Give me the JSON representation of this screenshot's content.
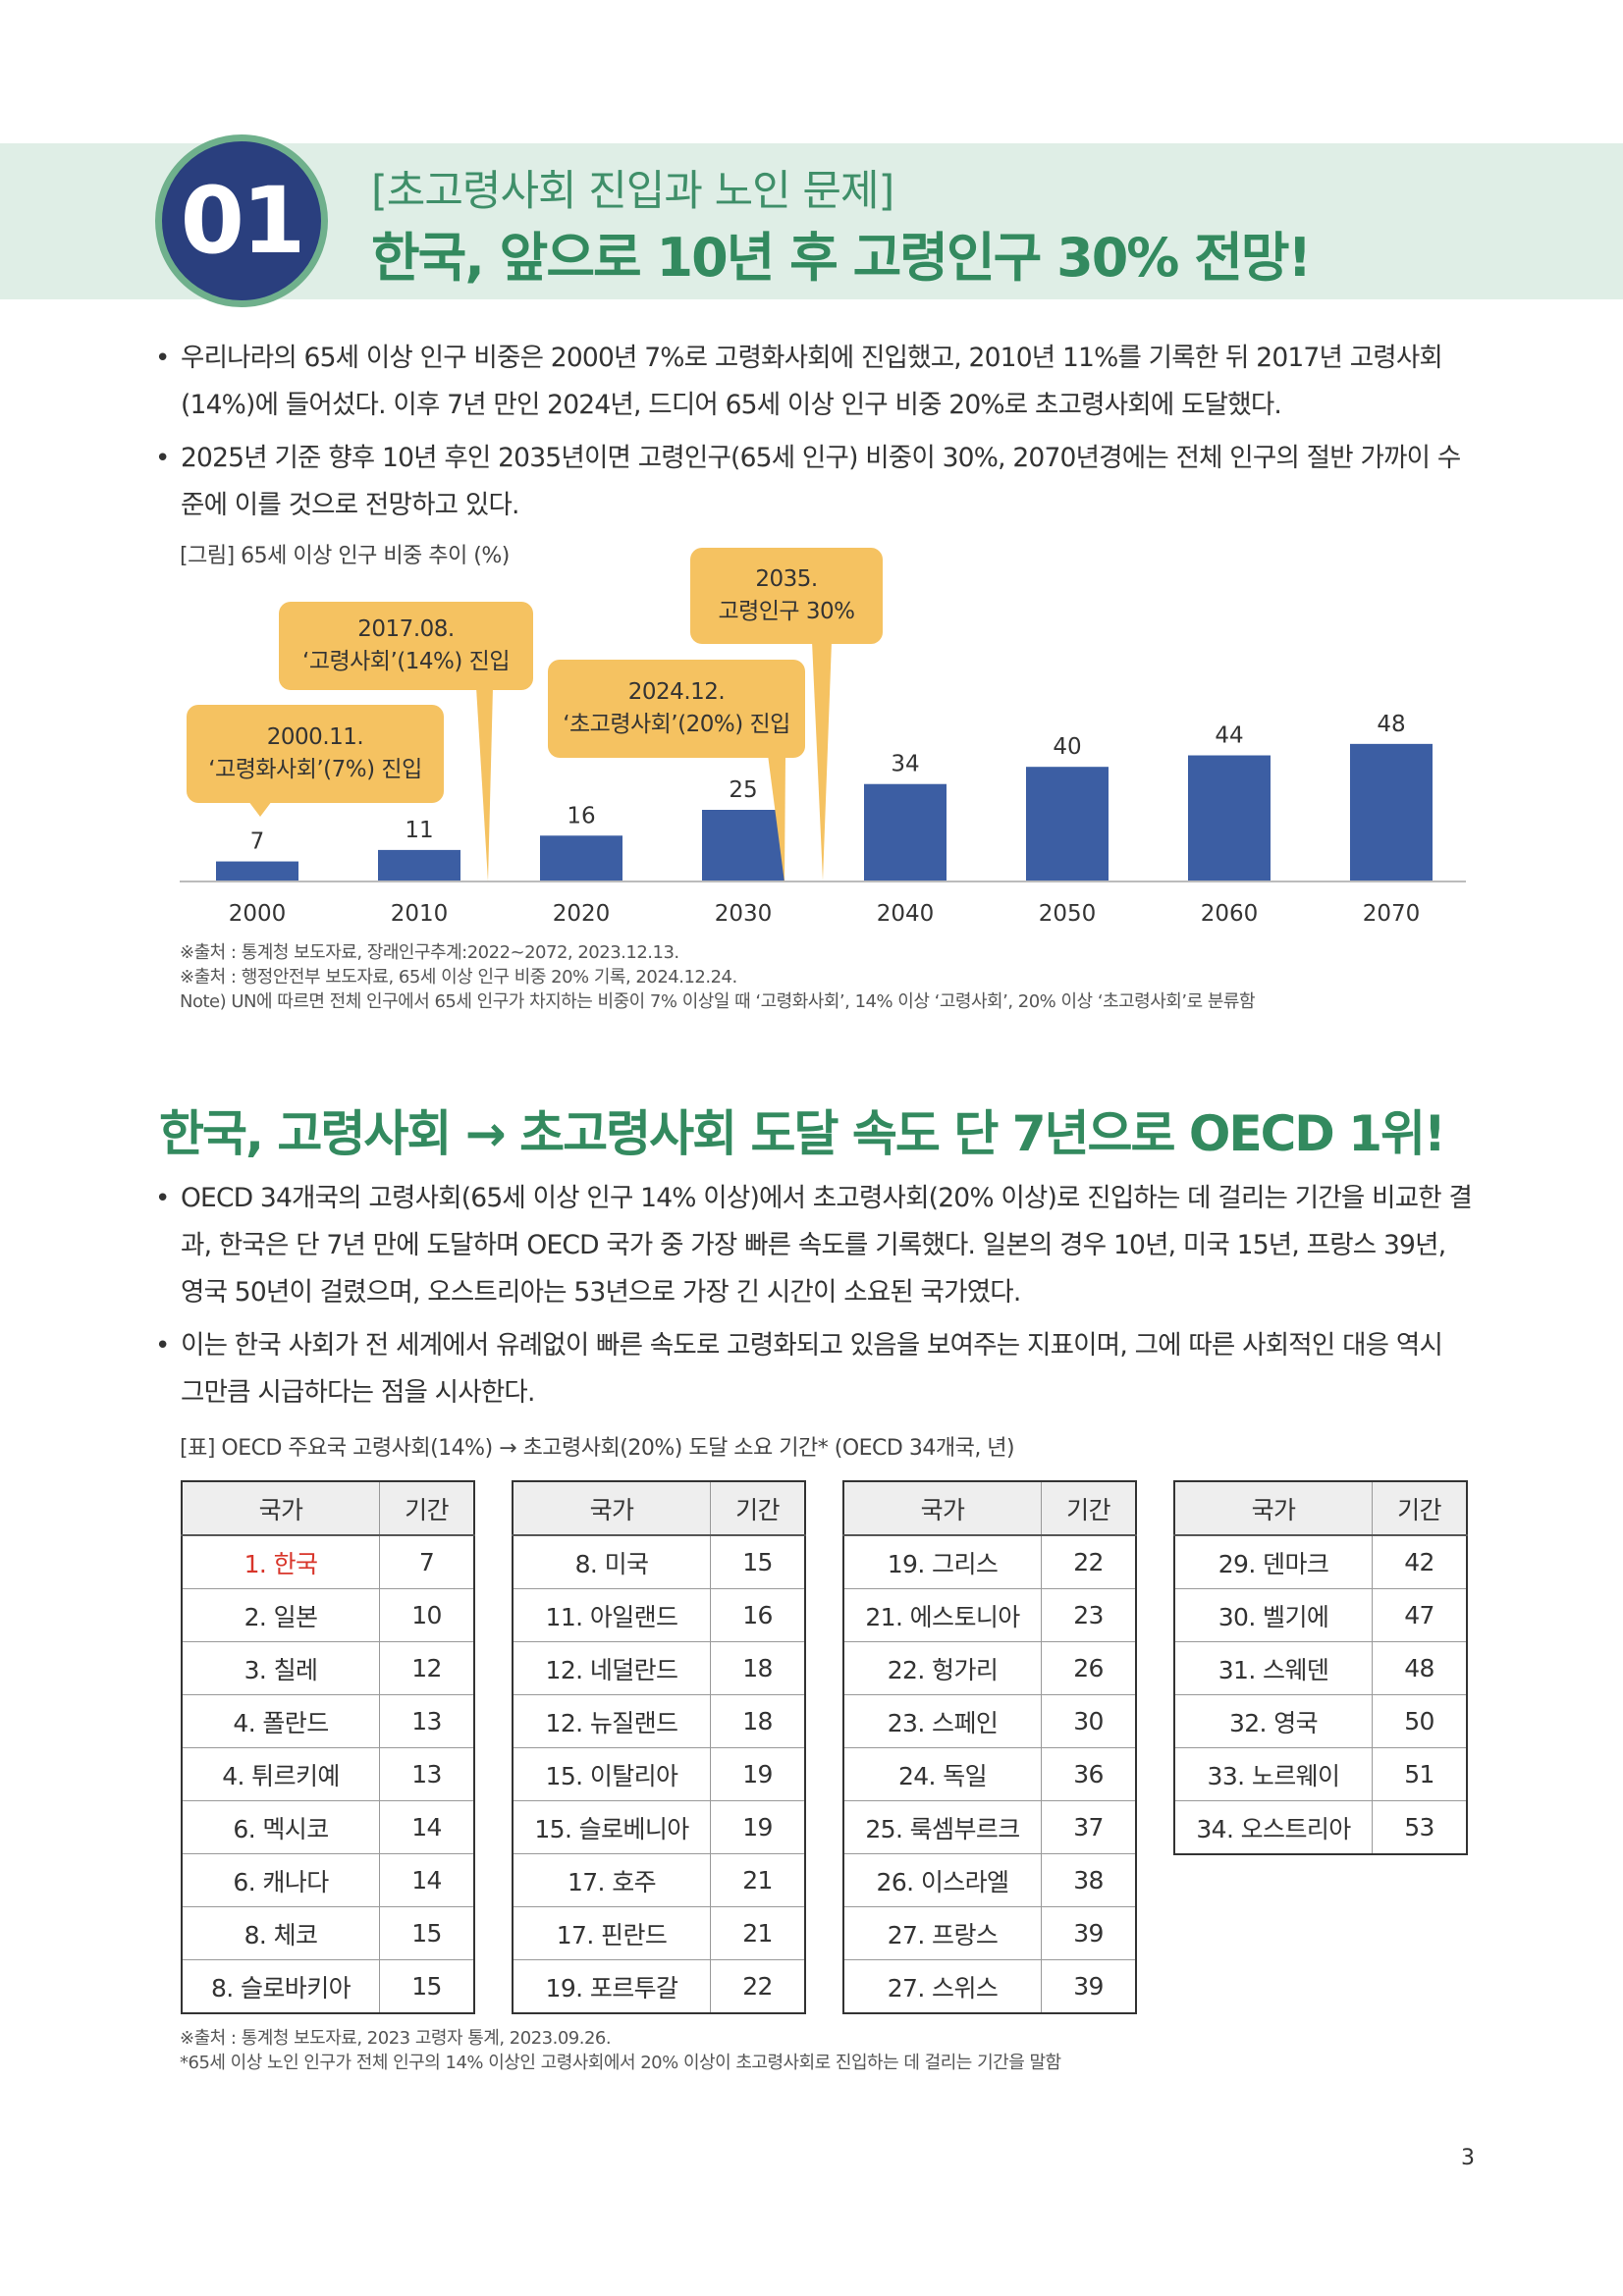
{
  "header": {
    "number": "01",
    "subtitle": "[초고령사회 진입과 노인 문제]",
    "title": "한국, 앞으로 10년 후 고령인구 30% 전망!"
  },
  "section1": {
    "bullets": [
      "우리나라의 65세 이상 인구 비중은 2000년 7%로 고령화사회에 진입했고, 2010년 11%를 기록한 뒤 2017년 고령사회(14%)에 들어섰다. 이후 7년 만인 2024년, 드디어 65세 이상 인구 비중 20%로 초고령사회에 도달했다.",
      "2025년 기준 향후 10년 후인 2035년이면 고령인구(65세 인구) 비중이 30%, 2070년경에는 전체 인구의 절반 가까이 수준에 이를 것으로 전망하고 있다."
    ],
    "figure_caption": "[그림] 65세 이상 인구 비중 추이 (%)",
    "callouts": [
      {
        "line1": "2000.11.",
        "line2": "‘고령화사회’(7%) 진입"
      },
      {
        "line1": "2017.08.",
        "line2": "‘고령사회’(14%) 진입"
      },
      {
        "line1": "2024.12.",
        "line2": "‘초고령사회’(20%) 진입"
      },
      {
        "line1": "2035.",
        "line2": "고령인구 30%"
      }
    ],
    "notes": [
      "※출처 : 통계청 보도자료, 장래인구추계:2022~2072, 2023.12.13.",
      "※출처 : 행정안전부 보도자료, 65세 이상 인구 비중 20% 기록, 2024.12.24.",
      "Note) UN에 따르면 전체 인구에서 65세 인구가 차지하는 비중이 7% 이상일 때 ‘고령화사회’, 14% 이상 ‘고령사회’, 20% 이상 ‘초고령사회’로 분류함"
    ]
  },
  "chart_data": {
    "type": "bar",
    "categories": [
      "2000",
      "2010",
      "2020",
      "2030",
      "2040",
      "2050",
      "2060",
      "2070"
    ],
    "values": [
      7,
      11,
      16,
      25,
      34,
      40,
      44,
      48
    ],
    "title": "",
    "xlabel": "",
    "ylabel": "",
    "ylim": [
      0,
      60
    ],
    "grid": false,
    "bar_color": "#3c5ea3",
    "data_labels": true
  },
  "section2": {
    "title": "한국, 고령사회 → 초고령사회 도달 속도 단 7년으로 OECD 1위!",
    "bullets": [
      "OECD 34개국의 고령사회(65세 이상 인구 14% 이상)에서 초고령사회(20% 이상)로 진입하는 데 걸리는 기간을 비교한 결과, 한국은 단 7년 만에 도달하며 OECD 국가 중 가장 빠른 속도를 기록했다. 일본의 경우 10년, 미국 15년, 프랑스 39년, 영국 50년이 걸렸으며, 오스트리아는 53년으로 가장 긴 시간이 소요된 국가였다.",
      "이는 한국 사회가 전 세계에서 유례없이 빠른 속도로 고령화되고 있음을 보여주는 지표이며, 그에 따른 사회적인 대응 역시 그만큼 시급하다는 점을 시사한다."
    ],
    "table_caption": "[표] OECD 주요국 고령사회(14%) → 초고령사회(20%) 도달 소요 기간* (OECD 34개국, 년)",
    "table_headers": {
      "country": "국가",
      "period": "기간"
    },
    "tables": [
      [
        {
          "country": "1. 한국",
          "period": "7",
          "highlight": true
        },
        {
          "country": "2. 일본",
          "period": "10"
        },
        {
          "country": "3. 칠레",
          "period": "12"
        },
        {
          "country": "4. 폴란드",
          "period": "13"
        },
        {
          "country": "4. 튀르키예",
          "period": "13"
        },
        {
          "country": "6. 멕시코",
          "period": "14"
        },
        {
          "country": "6. 캐나다",
          "period": "14"
        },
        {
          "country": "8. 체코",
          "period": "15"
        },
        {
          "country": "8. 슬로바키아",
          "period": "15"
        }
      ],
      [
        {
          "country": "8. 미국",
          "period": "15"
        },
        {
          "country": "11. 아일랜드",
          "period": "16"
        },
        {
          "country": "12. 네덜란드",
          "period": "18"
        },
        {
          "country": "12. 뉴질랜드",
          "period": "18"
        },
        {
          "country": "15. 이탈리아",
          "period": "19"
        },
        {
          "country": "15. 슬로베니아",
          "period": "19"
        },
        {
          "country": "17. 호주",
          "period": "21"
        },
        {
          "country": "17. 핀란드",
          "period": "21"
        },
        {
          "country": "19. 포르투갈",
          "period": "22"
        }
      ],
      [
        {
          "country": "19. 그리스",
          "period": "22"
        },
        {
          "country": "21. 에스토니아",
          "period": "23"
        },
        {
          "country": "22. 헝가리",
          "period": "26"
        },
        {
          "country": "23. 스페인",
          "period": "30"
        },
        {
          "country": "24. 독일",
          "period": "36"
        },
        {
          "country": "25. 룩셈부르크",
          "period": "37"
        },
        {
          "country": "26. 이스라엘",
          "period": "38"
        },
        {
          "country": "27. 프랑스",
          "period": "39"
        },
        {
          "country": "27. 스위스",
          "period": "39"
        }
      ],
      [
        {
          "country": "29. 덴마크",
          "period": "42"
        },
        {
          "country": "30. 벨기에",
          "period": "47"
        },
        {
          "country": "31. 스웨덴",
          "period": "48"
        },
        {
          "country": "32. 영국",
          "period": "50"
        },
        {
          "country": "33. 노르웨이",
          "period": "51"
        },
        {
          "country": "34. 오스트리아",
          "period": "53"
        }
      ]
    ],
    "notes": [
      "※출처 : 통계청 보도자료, 2023 고령자 통계, 2023.09.26.",
      "*65세 이상 노인 인구가 전체 인구의 14% 이상인 고령사회에서 20% 이상이 초고령사회로 진입하는 데 걸리는 기간을 말함"
    ]
  },
  "page_number": "3"
}
